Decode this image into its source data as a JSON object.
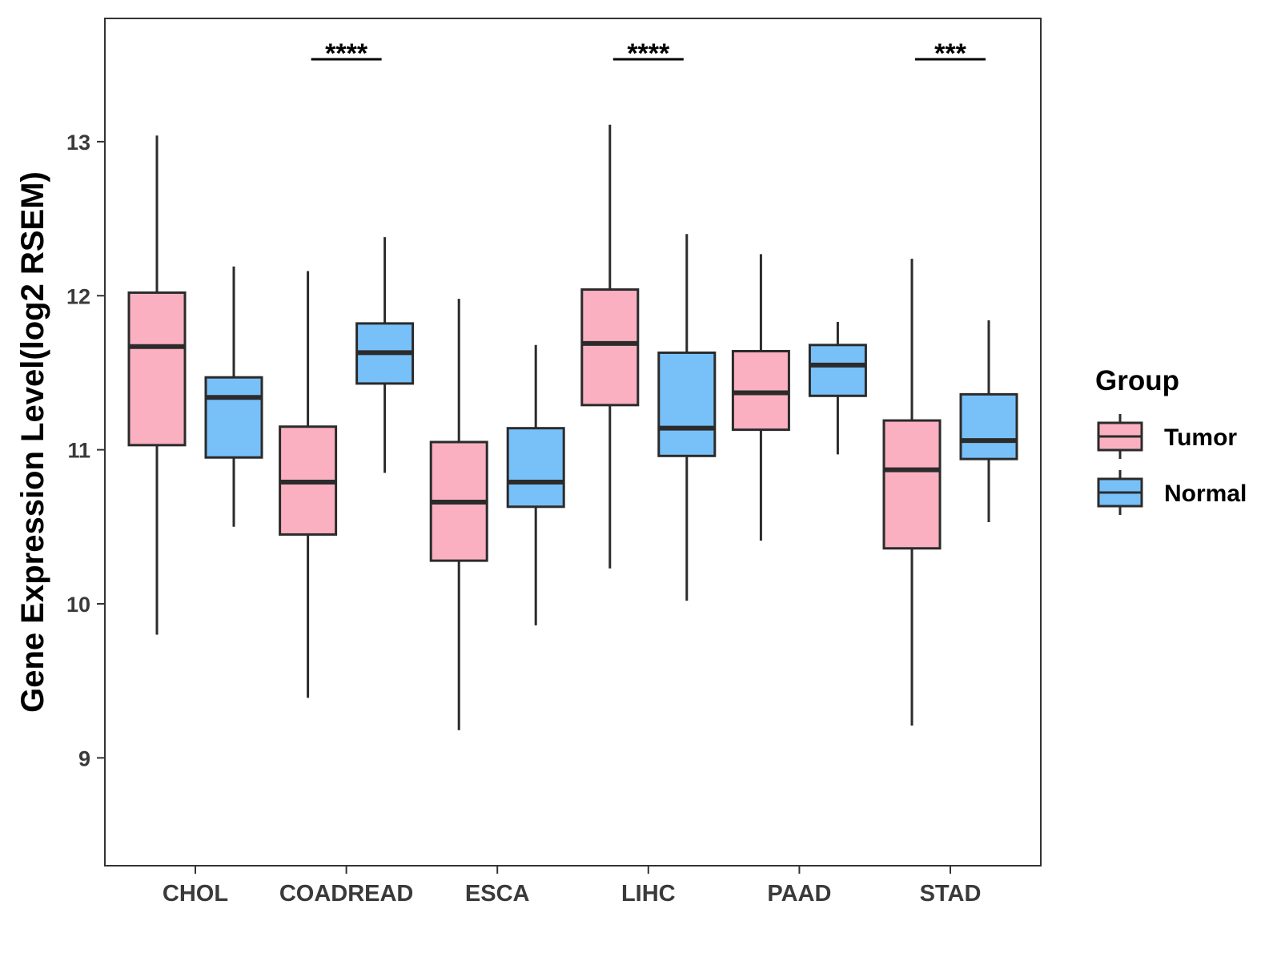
{
  "chart_data": {
    "type": "boxplot",
    "title": "",
    "xlabel": "",
    "ylabel": "Gene Expression Level(log2 RSEM)",
    "ylim": [
      8.3,
      13.8
    ],
    "yticks": [
      9,
      10,
      11,
      12,
      13
    ],
    "categories": [
      "CHOL",
      "COADREAD",
      "ESCA",
      "LIHC",
      "PAAD",
      "STAD"
    ],
    "legend": {
      "title": "Group",
      "position": "right",
      "entries": [
        {
          "name": "Tumor",
          "color": "#FBB0C1"
        },
        {
          "name": "Normal",
          "color": "#78C0F8"
        }
      ]
    },
    "series": [
      {
        "name": "Tumor",
        "color": "#FBB0C1",
        "boxes": [
          {
            "category": "CHOL",
            "min": 9.8,
            "q1": 11.03,
            "median": 11.67,
            "q3": 12.02,
            "max": 13.04
          },
          {
            "category": "COADREAD",
            "min": 9.39,
            "q1": 10.45,
            "median": 10.79,
            "q3": 11.15,
            "max": 12.16
          },
          {
            "category": "ESCA",
            "min": 9.18,
            "q1": 10.28,
            "median": 10.66,
            "q3": 11.05,
            "max": 11.98
          },
          {
            "category": "LIHC",
            "min": 10.23,
            "q1": 11.29,
            "median": 11.69,
            "q3": 12.04,
            "max": 13.11
          },
          {
            "category": "PAAD",
            "min": 10.41,
            "q1": 11.13,
            "median": 11.37,
            "q3": 11.64,
            "max": 12.27
          },
          {
            "category": "STAD",
            "min": 9.21,
            "q1": 10.36,
            "median": 10.87,
            "q3": 11.19,
            "max": 12.24
          }
        ]
      },
      {
        "name": "Normal",
        "color": "#78C0F8",
        "boxes": [
          {
            "category": "CHOL",
            "min": 10.5,
            "q1": 10.95,
            "median": 11.34,
            "q3": 11.47,
            "max": 12.19
          },
          {
            "category": "COADREAD",
            "min": 10.85,
            "q1": 11.43,
            "median": 11.63,
            "q3": 11.82,
            "max": 12.38
          },
          {
            "category": "ESCA",
            "min": 9.86,
            "q1": 10.63,
            "median": 10.79,
            "q3": 11.14,
            "max": 11.68
          },
          {
            "category": "LIHC",
            "min": 10.02,
            "q1": 10.96,
            "median": 11.14,
            "q3": 11.63,
            "max": 12.4
          },
          {
            "category": "PAAD",
            "min": 10.97,
            "q1": 11.35,
            "median": 11.55,
            "q3": 11.68,
            "max": 11.83
          },
          {
            "category": "STAD",
            "min": 10.53,
            "q1": 10.94,
            "median": 11.06,
            "q3": 11.36,
            "max": 11.84
          }
        ]
      }
    ],
    "annotations": [
      {
        "category": "COADREAD",
        "label": "****"
      },
      {
        "category": "LIHC",
        "label": "****"
      },
      {
        "category": "STAD",
        "label": "***"
      }
    ]
  }
}
